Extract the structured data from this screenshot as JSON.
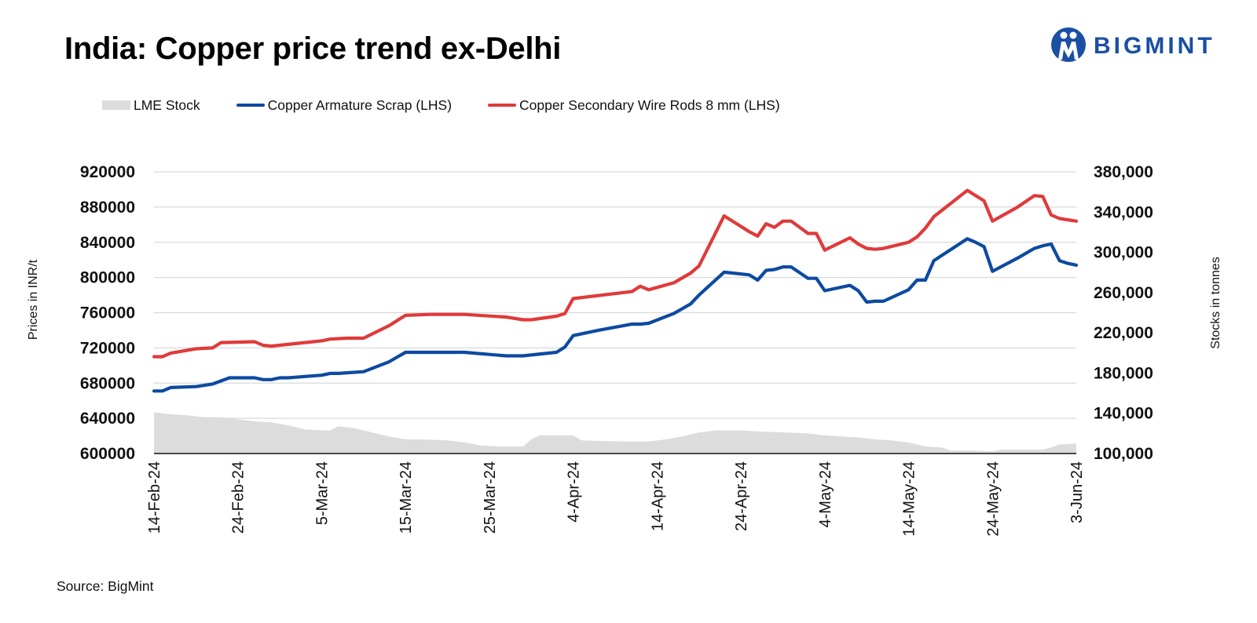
{
  "header": {
    "title": "India: Copper price trend ex-Delhi",
    "logo_text": "BIGMINT",
    "logo_color": "#1a4fa3"
  },
  "source": "Source: BigMint",
  "chart_data": {
    "type": "line",
    "title": "India: Copper price trend ex-Delhi",
    "y_left_label": "Prices in INR/t",
    "y_right_label": "Stocks in tonnes",
    "y_left_range": [
      600000,
      920000
    ],
    "y_right_range": [
      100000,
      380000
    ],
    "y_left_ticks": [
      "600000",
      "640000",
      "680000",
      "720000",
      "760000",
      "800000",
      "840000",
      "880000",
      "920000"
    ],
    "y_right_ticks": [
      "100,000",
      "140,000",
      "180,000",
      "220,000",
      "260,000",
      "300,000",
      "340,000",
      "380,000"
    ],
    "x_range": [
      "2024-02-14",
      "2024-06-03"
    ],
    "x_ticks": [
      {
        "date": "2024-02-14",
        "label": "14-Feb-24"
      },
      {
        "date": "2024-02-24",
        "label": "24-Feb-24"
      },
      {
        "date": "2024-03-05",
        "label": "5-Mar-24"
      },
      {
        "date": "2024-03-15",
        "label": "15-Mar-24"
      },
      {
        "date": "2024-03-25",
        "label": "25-Mar-24"
      },
      {
        "date": "2024-04-04",
        "label": "4-Apr-24"
      },
      {
        "date": "2024-04-14",
        "label": "14-Apr-24"
      },
      {
        "date": "2024-04-24",
        "label": "24-Apr-24"
      },
      {
        "date": "2024-05-04",
        "label": "4-May-24"
      },
      {
        "date": "2024-05-14",
        "label": "14-May-24"
      },
      {
        "date": "2024-05-24",
        "label": "24-May-24"
      },
      {
        "date": "2024-06-03",
        "label": "3-Jun-24"
      }
    ],
    "grid": "horizontal",
    "legend_position": "top-left",
    "series": [
      {
        "name": "LME Stock",
        "type": "area",
        "axis": "right",
        "color": "#dcdcdc",
        "points": [
          [
            "2024-02-14",
            141000
          ],
          [
            "2024-02-16",
            139000
          ],
          [
            "2024-02-18",
            138000
          ],
          [
            "2024-02-20",
            136000
          ],
          [
            "2024-02-22",
            136000
          ],
          [
            "2024-02-24",
            134000
          ],
          [
            "2024-02-26",
            132000
          ],
          [
            "2024-02-28",
            131000
          ],
          [
            "2024-03-01",
            128000
          ],
          [
            "2024-03-03",
            124000
          ],
          [
            "2024-03-05",
            123000
          ],
          [
            "2024-03-06",
            123000
          ],
          [
            "2024-03-07",
            127000
          ],
          [
            "2024-03-09",
            125000
          ],
          [
            "2024-03-11",
            121000
          ],
          [
            "2024-03-13",
            117000
          ],
          [
            "2024-03-15",
            114000
          ],
          [
            "2024-03-17",
            114000
          ],
          [
            "2024-03-20",
            113000
          ],
          [
            "2024-03-22",
            111000
          ],
          [
            "2024-03-24",
            108000
          ],
          [
            "2024-03-26",
            107000
          ],
          [
            "2024-03-28",
            107000
          ],
          [
            "2024-03-29",
            107000
          ],
          [
            "2024-03-30",
            114000
          ],
          [
            "2024-03-31",
            118000
          ],
          [
            "2024-04-02",
            118000
          ],
          [
            "2024-04-03",
            118000
          ],
          [
            "2024-04-04",
            118000
          ],
          [
            "2024-04-05",
            113000
          ],
          [
            "2024-04-10",
            112000
          ],
          [
            "2024-04-13",
            112000
          ],
          [
            "2024-04-15",
            114000
          ],
          [
            "2024-04-17",
            117000
          ],
          [
            "2024-04-19",
            121000
          ],
          [
            "2024-04-21",
            123000
          ],
          [
            "2024-04-24",
            123000
          ],
          [
            "2024-04-26",
            122000
          ],
          [
            "2024-04-29",
            121000
          ],
          [
            "2024-05-02",
            120000
          ],
          [
            "2024-05-04",
            118000
          ],
          [
            "2024-05-06",
            117000
          ],
          [
            "2024-05-08",
            116000
          ],
          [
            "2024-05-10",
            114000
          ],
          [
            "2024-05-12",
            113000
          ],
          [
            "2024-05-14",
            111000
          ],
          [
            "2024-05-16",
            107000
          ],
          [
            "2024-05-18",
            106000
          ],
          [
            "2024-05-19",
            103000
          ],
          [
            "2024-05-22",
            103000
          ],
          [
            "2024-05-24",
            102000
          ],
          [
            "2024-05-25",
            104000
          ],
          [
            "2024-05-28",
            104000
          ],
          [
            "2024-05-30",
            104000
          ],
          [
            "2024-05-31",
            106000
          ],
          [
            "2024-06-01",
            109000
          ],
          [
            "2024-06-03",
            110000
          ]
        ]
      },
      {
        "name": "Copper Armature Scrap (LHS)",
        "type": "line",
        "axis": "left",
        "color": "#0d4aa1",
        "points": [
          [
            "2024-02-14",
            671000
          ],
          [
            "2024-02-15",
            671000
          ],
          [
            "2024-02-16",
            675000
          ],
          [
            "2024-02-19",
            676000
          ],
          [
            "2024-02-21",
            679000
          ],
          [
            "2024-02-23",
            686000
          ],
          [
            "2024-02-26",
            686000
          ],
          [
            "2024-02-27",
            684000
          ],
          [
            "2024-02-28",
            684000
          ],
          [
            "2024-02-29",
            686000
          ],
          [
            "2024-03-01",
            686000
          ],
          [
            "2024-03-05",
            689000
          ],
          [
            "2024-03-06",
            691000
          ],
          [
            "2024-03-07",
            691000
          ],
          [
            "2024-03-10",
            693000
          ],
          [
            "2024-03-13",
            704000
          ],
          [
            "2024-03-15",
            715000
          ],
          [
            "2024-03-22",
            715000
          ],
          [
            "2024-03-27",
            711000
          ],
          [
            "2024-03-29",
            711000
          ],
          [
            "2024-04-02",
            715000
          ],
          [
            "2024-04-03",
            721000
          ],
          [
            "2024-04-04",
            734000
          ],
          [
            "2024-04-07",
            740000
          ],
          [
            "2024-04-11",
            747000
          ],
          [
            "2024-04-12",
            747000
          ],
          [
            "2024-04-13",
            748000
          ],
          [
            "2024-04-16",
            759000
          ],
          [
            "2024-04-18",
            770000
          ],
          [
            "2024-04-19",
            780000
          ],
          [
            "2024-04-22",
            806000
          ],
          [
            "2024-04-25",
            803000
          ],
          [
            "2024-04-26",
            797000
          ],
          [
            "2024-04-27",
            808000
          ],
          [
            "2024-04-28",
            809000
          ],
          [
            "2024-04-29",
            812000
          ],
          [
            "2024-04-30",
            812000
          ],
          [
            "2024-05-02",
            799000
          ],
          [
            "2024-05-03",
            799000
          ],
          [
            "2024-05-04",
            785000
          ],
          [
            "2024-05-07",
            791000
          ],
          [
            "2024-05-08",
            785000
          ],
          [
            "2024-05-09",
            772000
          ],
          [
            "2024-05-10",
            773000
          ],
          [
            "2024-05-11",
            773000
          ],
          [
            "2024-05-14",
            786000
          ],
          [
            "2024-05-15",
            797000
          ],
          [
            "2024-05-16",
            797000
          ],
          [
            "2024-05-17",
            819000
          ],
          [
            "2024-05-21",
            844000
          ],
          [
            "2024-05-22",
            840000
          ],
          [
            "2024-05-23",
            835000
          ],
          [
            "2024-05-24",
            807000
          ],
          [
            "2024-05-27",
            822000
          ],
          [
            "2024-05-29",
            833000
          ],
          [
            "2024-05-30",
            836000
          ],
          [
            "2024-05-31",
            838000
          ],
          [
            "2024-06-01",
            819000
          ],
          [
            "2024-06-02",
            816000
          ],
          [
            "2024-06-03",
            814000
          ]
        ]
      },
      {
        "name": "Copper Secondary Wire Rods 8 mm (LHS)",
        "type": "line",
        "axis": "left",
        "color": "#e03a3a",
        "points": [
          [
            "2024-02-14",
            710000
          ],
          [
            "2024-02-15",
            710000
          ],
          [
            "2024-02-16",
            714000
          ],
          [
            "2024-02-19",
            719000
          ],
          [
            "2024-02-21",
            720000
          ],
          [
            "2024-02-22",
            726000
          ],
          [
            "2024-02-26",
            727000
          ],
          [
            "2024-02-27",
            723000
          ],
          [
            "2024-02-28",
            722000
          ],
          [
            "2024-02-29",
            723000
          ],
          [
            "2024-03-05",
            728000
          ],
          [
            "2024-03-06",
            730000
          ],
          [
            "2024-03-08",
            731000
          ],
          [
            "2024-03-10",
            731000
          ],
          [
            "2024-03-13",
            745000
          ],
          [
            "2024-03-15",
            757000
          ],
          [
            "2024-03-18",
            758000
          ],
          [
            "2024-03-22",
            758000
          ],
          [
            "2024-03-27",
            755000
          ],
          [
            "2024-03-29",
            752000
          ],
          [
            "2024-03-30",
            752000
          ],
          [
            "2024-04-02",
            756000
          ],
          [
            "2024-04-03",
            759000
          ],
          [
            "2024-04-04",
            776000
          ],
          [
            "2024-04-11",
            784000
          ],
          [
            "2024-04-12",
            790000
          ],
          [
            "2024-04-13",
            786000
          ],
          [
            "2024-04-16",
            794000
          ],
          [
            "2024-04-18",
            805000
          ],
          [
            "2024-04-19",
            813000
          ],
          [
            "2024-04-22",
            870000
          ],
          [
            "2024-04-25",
            852000
          ],
          [
            "2024-04-26",
            847000
          ],
          [
            "2024-04-27",
            861000
          ],
          [
            "2024-04-28",
            857000
          ],
          [
            "2024-04-29",
            864000
          ],
          [
            "2024-04-30",
            864000
          ],
          [
            "2024-05-02",
            850000
          ],
          [
            "2024-05-03",
            850000
          ],
          [
            "2024-05-04",
            831000
          ],
          [
            "2024-05-07",
            845000
          ],
          [
            "2024-05-08",
            838000
          ],
          [
            "2024-05-09",
            833000
          ],
          [
            "2024-05-10",
            832000
          ],
          [
            "2024-05-11",
            833000
          ],
          [
            "2024-05-14",
            840000
          ],
          [
            "2024-05-15",
            846000
          ],
          [
            "2024-05-16",
            856000
          ],
          [
            "2024-05-17",
            869000
          ],
          [
            "2024-05-21",
            899000
          ],
          [
            "2024-05-23",
            887000
          ],
          [
            "2024-05-24",
            864000
          ],
          [
            "2024-05-27",
            880000
          ],
          [
            "2024-05-29",
            893000
          ],
          [
            "2024-05-30",
            892000
          ],
          [
            "2024-05-31",
            871000
          ],
          [
            "2024-06-01",
            867000
          ],
          [
            "2024-06-03",
            864000
          ]
        ]
      }
    ]
  }
}
